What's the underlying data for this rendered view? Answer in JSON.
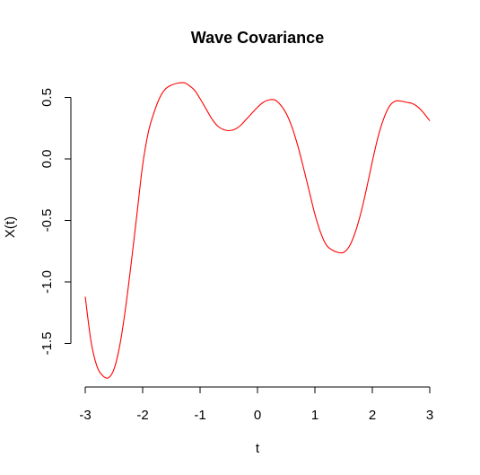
{
  "chart_data": {
    "type": "line",
    "title": "Wave Covariance",
    "xlabel": "t",
    "ylabel": "X(t)",
    "xlim": [
      -3,
      3
    ],
    "ylim": [
      -1.82,
      0.65
    ],
    "x_ticks": [
      -3,
      -2,
      -1,
      0,
      1,
      2,
      3
    ],
    "x_tick_labels": [
      "-3",
      "-2",
      "-1",
      "0",
      "1",
      "2",
      "3"
    ],
    "y_ticks": [
      -1.5,
      -1.0,
      -0.5,
      0.0,
      0.5
    ],
    "y_tick_labels": [
      "-1.5",
      "-1.0",
      "-0.5",
      "0.0",
      "0.5"
    ],
    "grid": false,
    "series": [
      {
        "color": "#ff0000",
        "x": [
          -3.0,
          -2.9,
          -2.8,
          -2.7,
          -2.6,
          -2.5,
          -2.4,
          -2.3,
          -2.2,
          -2.1,
          -2.0,
          -1.9,
          -1.8,
          -1.7,
          -1.6,
          -1.5,
          -1.4,
          -1.3,
          -1.25,
          -1.2,
          -1.1,
          -1.0,
          -0.9,
          -0.8,
          -0.7,
          -0.6,
          -0.5,
          -0.4,
          -0.3,
          -0.2,
          -0.1,
          0.0,
          0.1,
          0.2,
          0.3,
          0.4,
          0.5,
          0.6,
          0.7,
          0.8,
          0.9,
          1.0,
          1.1,
          1.2,
          1.3,
          1.4,
          1.5,
          1.6,
          1.7,
          1.8,
          1.9,
          2.0,
          2.1,
          2.2,
          2.3,
          2.4,
          2.5,
          2.6,
          2.7,
          2.8,
          2.9,
          3.0
        ],
        "y": [
          -1.12,
          -1.48,
          -1.68,
          -1.76,
          -1.78,
          -1.71,
          -1.52,
          -1.22,
          -0.85,
          -0.45,
          -0.05,
          0.22,
          0.38,
          0.5,
          0.57,
          0.6,
          0.615,
          0.62,
          0.615,
          0.6,
          0.56,
          0.49,
          0.41,
          0.33,
          0.27,
          0.24,
          0.23,
          0.24,
          0.27,
          0.32,
          0.37,
          0.42,
          0.46,
          0.48,
          0.48,
          0.44,
          0.37,
          0.26,
          0.11,
          -0.07,
          -0.26,
          -0.45,
          -0.6,
          -0.7,
          -0.74,
          -0.76,
          -0.76,
          -0.71,
          -0.6,
          -0.44,
          -0.24,
          -0.02,
          0.18,
          0.33,
          0.43,
          0.47,
          0.47,
          0.46,
          0.45,
          0.42,
          0.37,
          0.31
        ]
      }
    ]
  }
}
